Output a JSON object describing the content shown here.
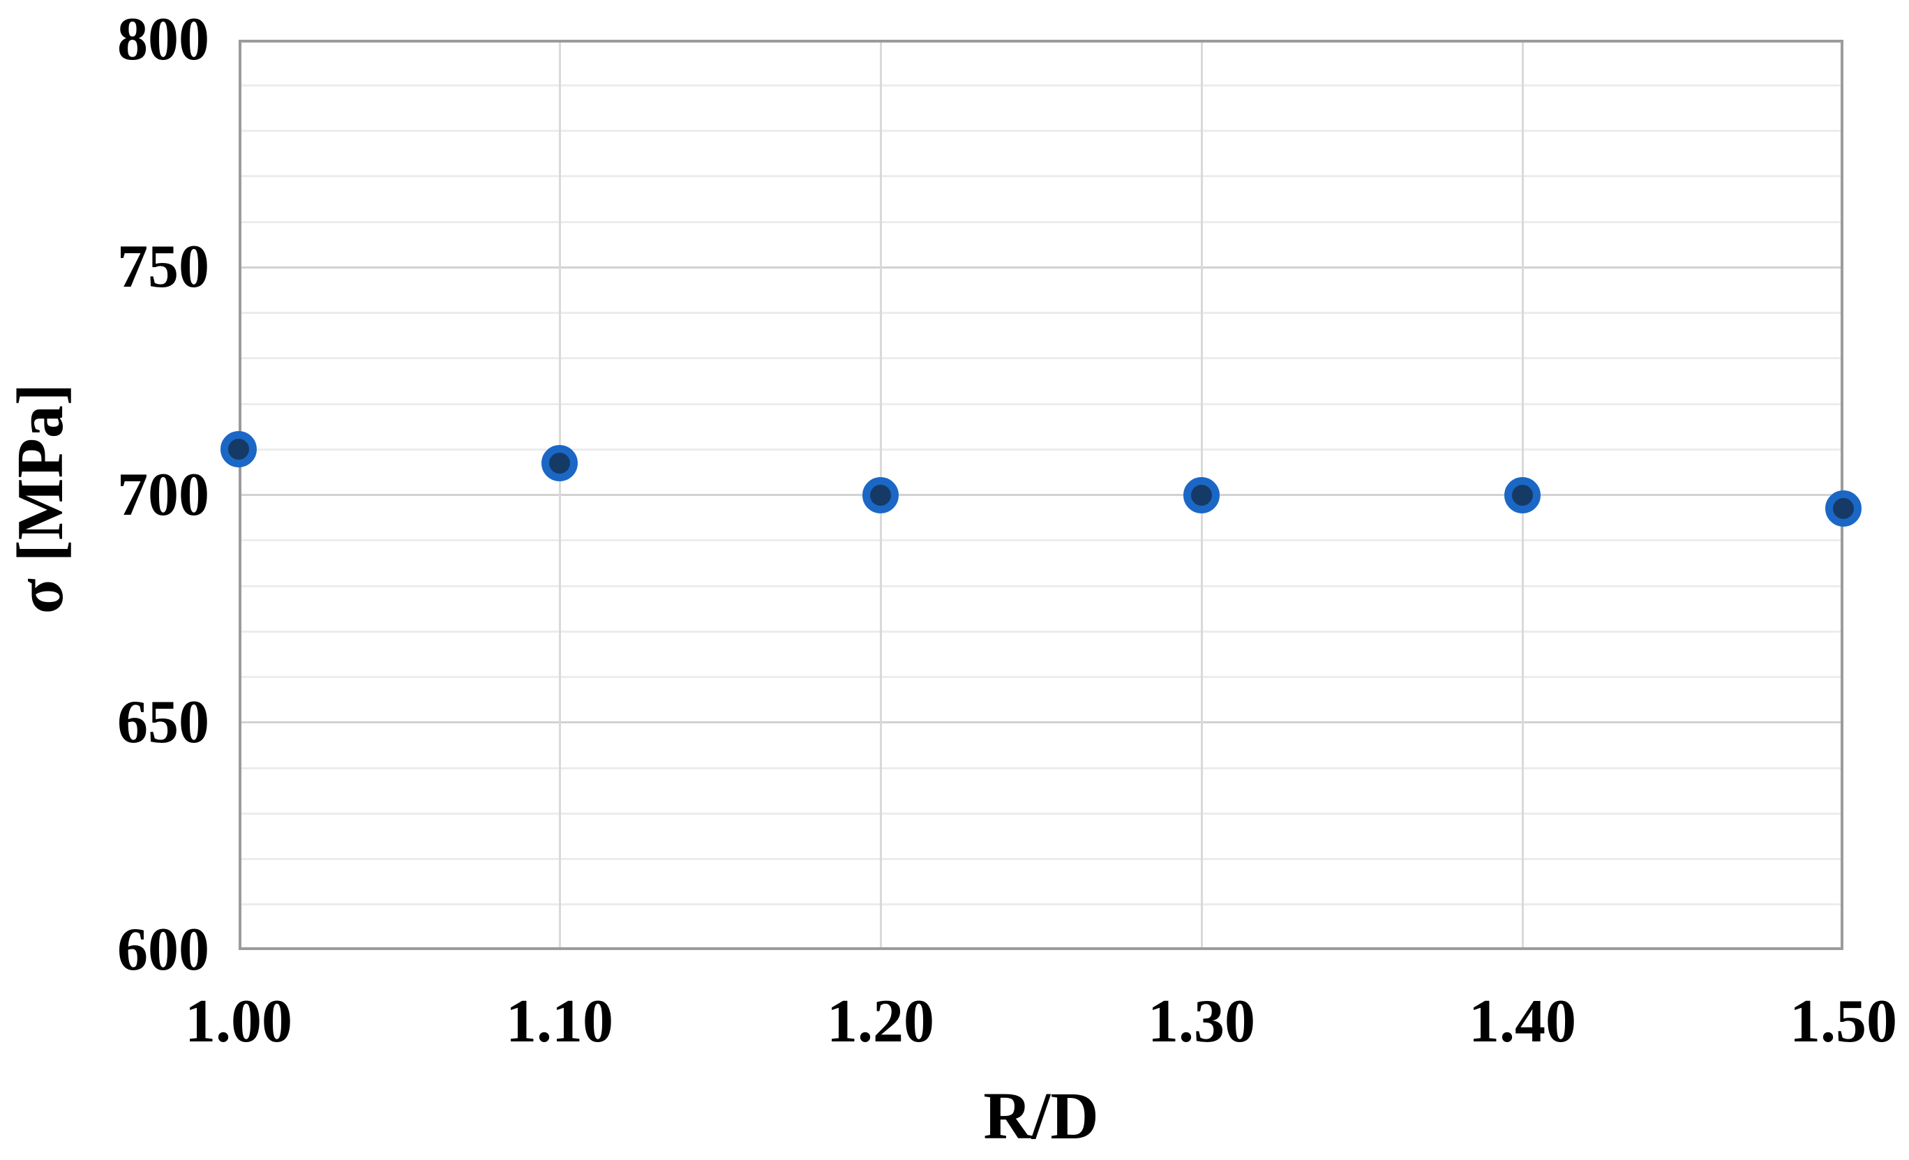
{
  "chart_data": {
    "type": "scatter",
    "title": "",
    "xlabel": "R/D",
    "ylabel": "σ [MPa]",
    "x": [
      1.0,
      1.1,
      1.2,
      1.3,
      1.4,
      1.5
    ],
    "y": [
      710,
      707,
      700,
      700,
      700,
      697
    ],
    "xlim": [
      1.0,
      1.5
    ],
    "ylim": [
      600,
      800
    ],
    "x_tick_labels": [
      "1.00",
      "1.10",
      "1.20",
      "1.30",
      "1.40",
      "1.50"
    ],
    "y_tick_labels": [
      "800",
      "750",
      "700",
      "650",
      "600"
    ],
    "y_major_step": 50,
    "y_minor_step": 10,
    "x_grid_step": 0.1,
    "grid": "on",
    "legend": "none",
    "marker_fill_color": "#163a66",
    "marker_border_color": "#1b67c6"
  }
}
